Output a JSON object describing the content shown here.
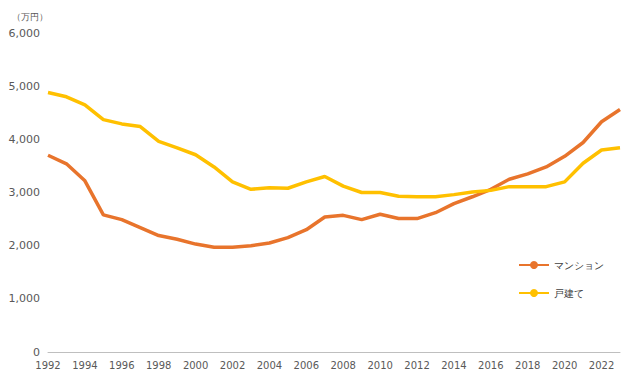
{
  "chart_data": {
    "type": "line",
    "y_label": "（万円）",
    "categories": [
      "1992",
      null,
      "1994",
      null,
      "1996",
      null,
      "1998",
      null,
      "2000",
      null,
      "2002",
      null,
      "2004",
      null,
      "2006",
      null,
      "2008",
      null,
      "2010",
      null,
      "2012",
      null,
      "2014",
      null,
      "2016",
      null,
      "2018",
      null,
      "2020",
      null,
      "2022",
      null
    ],
    "series": [
      {
        "name": "マンション",
        "color": "#E8742C",
        "values": [
          3700,
          3540,
          3220,
          2580,
          2490,
          2340,
          2190,
          2120,
          2030,
          1970,
          1970,
          2000,
          2050,
          2150,
          2300,
          2540,
          2570,
          2490,
          2590,
          2510,
          2510,
          2620,
          2790,
          2920,
          3060,
          3250,
          3350,
          3480,
          3680,
          3940,
          4330,
          4560
        ]
      },
      {
        "name": "戸建て",
        "color": "#FFC000",
        "values": [
          4880,
          4800,
          4650,
          4370,
          4290,
          4240,
          3960,
          3840,
          3710,
          3480,
          3200,
          3060,
          3090,
          3080,
          3200,
          3300,
          3120,
          3000,
          3000,
          2930,
          2920,
          2920,
          2960,
          3010,
          3040,
          3110,
          3110,
          3110,
          3200,
          3550,
          3800,
          3840
        ]
      }
    ],
    "ylim": [
      0,
      6000
    ],
    "yticks": [
      0,
      {
        "value": 1000,
        "label": "1,000"
      },
      {
        "value": 2000,
        "label": "2,000"
      },
      {
        "value": 3000,
        "label": "3,000"
      },
      {
        "value": 4000,
        "label": "4,000"
      },
      {
        "value": 5000,
        "label": "5,000"
      },
      {
        "value": 6000,
        "label": "6,000"
      }
    ],
    "grid": false,
    "legend": "right"
  }
}
